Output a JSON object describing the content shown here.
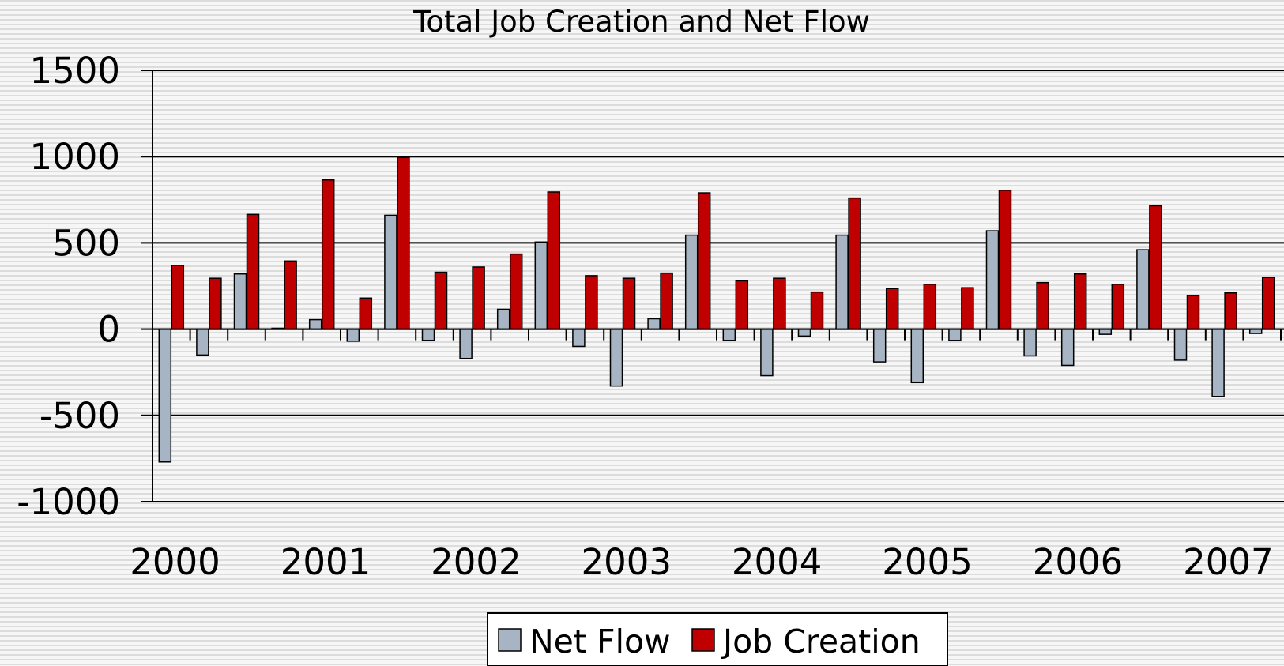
{
  "chart_data": {
    "type": "bar",
    "title": "Total Job Creation and Net Flow",
    "xlabel": "",
    "ylabel": "",
    "ylim": [
      -1000,
      1500
    ],
    "yticks": [
      1500,
      1000,
      500,
      0,
      -500,
      -1000
    ],
    "year_labels": [
      "2000",
      "2001",
      "2002",
      "2003",
      "2004",
      "2005",
      "2006",
      "2007"
    ],
    "periods_per_year": 4,
    "grid": "horizontal",
    "legend_position": "bottom",
    "series": [
      {
        "name": "Net Flow",
        "color": "#a7b4c3",
        "values": [
          -770,
          -150,
          320,
          5,
          55,
          -70,
          660,
          -65,
          -170,
          115,
          505,
          -100,
          -330,
          60,
          545,
          -65,
          -270,
          -40,
          545,
          -190,
          -310,
          -65,
          570,
          -155,
          -210,
          -30,
          460,
          -180,
          -390,
          -25
        ]
      },
      {
        "name": "Job Creation",
        "color": "#c00000",
        "values": [
          370,
          295,
          665,
          395,
          865,
          180,
          995,
          330,
          360,
          435,
          795,
          310,
          295,
          325,
          790,
          280,
          295,
          215,
          760,
          235,
          260,
          240,
          805,
          270,
          320,
          260,
          715,
          195,
          210,
          300
        ]
      }
    ]
  }
}
